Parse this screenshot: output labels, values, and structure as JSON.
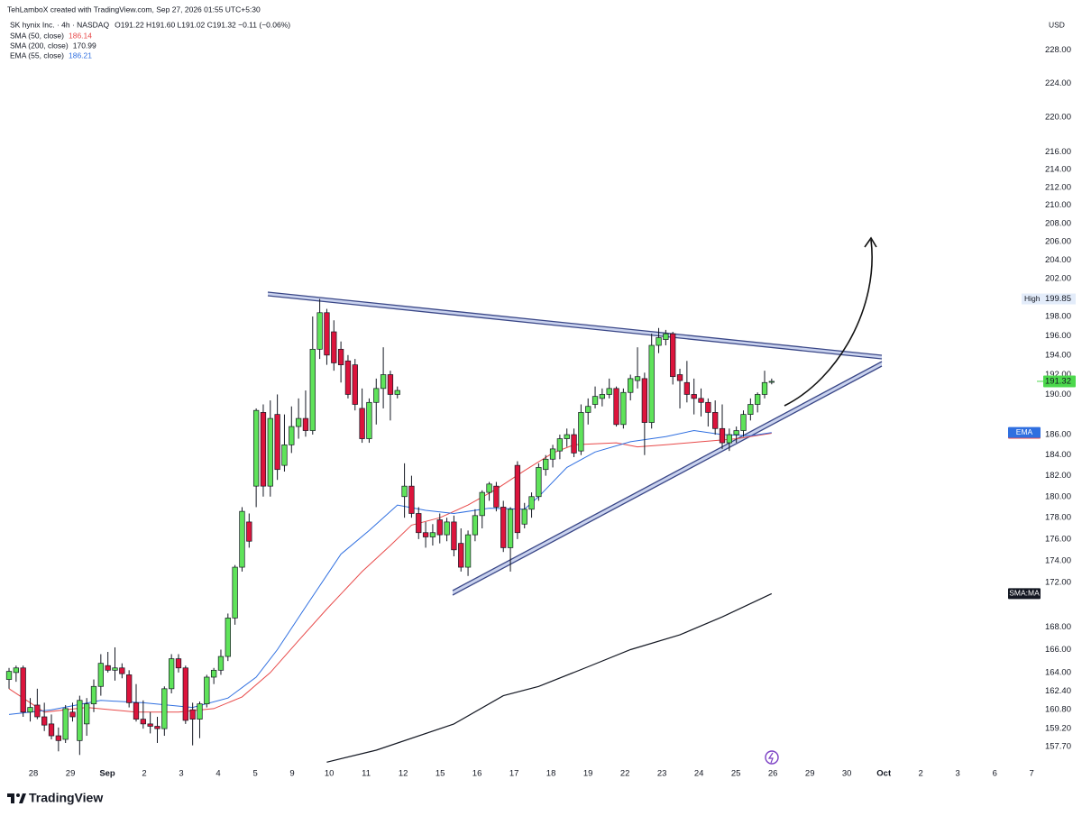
{
  "header": {
    "watermark": "TehLamboX created with TradingView.com, Sep 27, 2026 01:55 UTC+5:30",
    "symbol": "SK hynix Inc. · 4h · NASDAQ",
    "ohlc": "O191.22  H191.60  L191.02  C191.32  −0.11 (−0.06%)"
  },
  "footer": {
    "brand": "TradingView"
  },
  "chart_data": {
    "type": "candlestick",
    "currency": "USD",
    "log_scale": true,
    "up_color": "#5fe35a",
    "down_color": "#dc143c",
    "xlim": [
      -1.28,
      146.2
    ],
    "ylim": [
      156.2,
      234.1
    ],
    "xticks": [
      {
        "value": 3.45,
        "label": "28"
      },
      {
        "value": 8.69,
        "label": "29"
      },
      {
        "value": 13.92,
        "label": "Sep"
      },
      {
        "value": 19.16,
        "label": "2"
      },
      {
        "value": 24.39,
        "label": "3"
      },
      {
        "value": 29.63,
        "label": "4"
      },
      {
        "value": 34.87,
        "label": "5"
      },
      {
        "value": 40.1,
        "label": "9"
      },
      {
        "value": 45.34,
        "label": "10"
      },
      {
        "value": 50.57,
        "label": "11"
      },
      {
        "value": 55.81,
        "label": "12"
      },
      {
        "value": 61.05,
        "label": "15"
      },
      {
        "value": 66.28,
        "label": "16"
      },
      {
        "value": 71.52,
        "label": "17"
      },
      {
        "value": 76.75,
        "label": "18"
      },
      {
        "value": 81.99,
        "label": "19"
      },
      {
        "value": 87.23,
        "label": "22"
      },
      {
        "value": 92.46,
        "label": "23"
      },
      {
        "value": 97.7,
        "label": "24"
      },
      {
        "value": 102.93,
        "label": "25"
      },
      {
        "value": 108.17,
        "label": "26"
      },
      {
        "value": 113.41,
        "label": "29"
      },
      {
        "value": 118.64,
        "label": "30"
      },
      {
        "value": 123.88,
        "label": "Oct"
      },
      {
        "value": 129.11,
        "label": "2"
      },
      {
        "value": 134.35,
        "label": "3"
      },
      {
        "value": 139.59,
        "label": "6"
      },
      {
        "value": 144.82,
        "label": "7"
      }
    ],
    "yticks": [
      {
        "value": 157.7,
        "label": "157.70"
      },
      {
        "value": 159.2,
        "label": "159.20"
      },
      {
        "value": 160.8,
        "label": "160.80"
      },
      {
        "value": 162.4,
        "label": "162.40"
      },
      {
        "value": 164,
        "label": "164.00"
      },
      {
        "value": 166,
        "label": "166.00"
      },
      {
        "value": 168,
        "label": "168.00"
      },
      {
        "value": 172,
        "label": "172.00"
      },
      {
        "value": 174,
        "label": "174.00"
      },
      {
        "value": 176,
        "label": "176.00"
      },
      {
        "value": 178,
        "label": "178.00"
      },
      {
        "value": 180,
        "label": "180.00"
      },
      {
        "value": 182,
        "label": "182.00"
      },
      {
        "value": 184,
        "label": "184.00"
      },
      {
        "value": 186,
        "label": "186.00"
      },
      {
        "value": 190,
        "label": "190.00"
      },
      {
        "value": 192,
        "label": "192.00"
      },
      {
        "value": 194,
        "label": "194.00"
      },
      {
        "value": 196,
        "label": "196.00"
      },
      {
        "value": 198,
        "label": "198.00"
      },
      {
        "value": 202,
        "label": "202.00"
      },
      {
        "value": 204,
        "label": "204.00"
      },
      {
        "value": 206,
        "label": "206.00"
      },
      {
        "value": 208,
        "label": "208.00"
      },
      {
        "value": 210,
        "label": "210.00"
      },
      {
        "value": 212,
        "label": "212.00"
      },
      {
        "value": 214,
        "label": "214.00"
      },
      {
        "value": 216,
        "label": "216.00"
      },
      {
        "value": 220,
        "label": "220.00"
      },
      {
        "value": 224,
        "label": "224.00"
      },
      {
        "value": 228,
        "label": "228.00"
      }
    ],
    "candles": {
      "open": [
        163.4,
        164.0,
        164.4,
        160.6,
        161.2,
        160.2,
        159.6,
        158.6,
        158.3,
        160.6,
        158.2,
        159.6,
        161.3,
        162.8,
        164.6,
        164.2,
        164.4,
        163.8,
        161.4,
        160.0,
        159.6,
        159.4,
        159.2,
        162.6,
        165.2,
        164.4,
        160.8,
        160.0,
        161.3,
        163.6,
        164.2,
        165.4,
        168.8,
        173.4,
        177.6,
        181.0,
        188.2,
        181.0,
        188.0,
        183.0,
        185.0,
        186.8,
        187.6,
        186.4,
        194.6,
        198.4,
        196.4,
        194.6,
        193.4,
        193.0,
        188.6,
        185.6,
        189.2,
        190.6,
        192.0,
        190.0,
        180.0,
        181.0,
        178.4,
        176.6,
        176.2,
        177.8,
        176.4,
        177.6,
        175.6,
        173.4,
        176.4,
        178.2,
        180.4,
        181.0,
        179.0,
        175.2,
        183.0,
        177.4,
        178.8,
        180.0,
        182.6,
        183.6,
        184.4,
        185.6,
        186.0,
        184.4,
        188.2,
        189.0,
        189.6,
        190.0,
        190.6,
        187.0,
        190.2,
        191.4,
        191.6,
        187.2,
        195.0,
        195.6,
        196.2,
        192.0,
        191.2,
        190.0,
        189.6,
        189.2,
        188.2,
        186.6,
        185.2,
        186.0,
        186.4,
        188.0,
        189.0,
        190.0,
        191.22
      ],
      "high": [
        164.4,
        164.6,
        164.6,
        161.8,
        162.6,
        161.4,
        160.4,
        159.3,
        161.2,
        161.4,
        162.0,
        161.8,
        163.4,
        165.6,
        165.8,
        166.2,
        164.8,
        164.2,
        163.0,
        161.6,
        160.6,
        160.2,
        162.8,
        165.6,
        165.6,
        164.6,
        161.4,
        161.5,
        163.8,
        164.4,
        166.0,
        169.2,
        173.6,
        179.0,
        178.4,
        188.6,
        189.0,
        189.4,
        190.0,
        188.0,
        188.8,
        189.6,
        190.4,
        198.0,
        199.85,
        198.8,
        197.6,
        195.4,
        194.0,
        193.6,
        190.6,
        189.6,
        191.6,
        194.8,
        192.4,
        190.8,
        183.2,
        182.0,
        179.0,
        177.6,
        177.4,
        178.4,
        178.0,
        178.2,
        177.0,
        176.8,
        178.8,
        180.6,
        181.4,
        181.4,
        179.6,
        179.0,
        183.4,
        179.4,
        180.4,
        183.2,
        184.0,
        185.0,
        186.0,
        186.6,
        186.6,
        189.0,
        189.6,
        190.8,
        190.6,
        191.6,
        190.8,
        190.6,
        192.0,
        194.8,
        192.2,
        196.2,
        196.8,
        196.6,
        196.4,
        192.6,
        193.4,
        191.6,
        190.6,
        189.6,
        189.4,
        189.0,
        186.6,
        186.8,
        188.4,
        189.6,
        190.2,
        192.4,
        191.6
      ],
      "low": [
        162.6,
        163.2,
        160.2,
        159.8,
        160.0,
        159.0,
        158.3,
        157.3,
        158.0,
        159.8,
        157.0,
        158.6,
        160.6,
        162.0,
        164.0,
        163.3,
        163.5,
        161.0,
        159.8,
        159.2,
        158.8,
        158.0,
        158.6,
        162.2,
        164.0,
        159.6,
        157.8,
        158.4,
        161.0,
        163.0,
        163.8,
        165.0,
        168.2,
        173.0,
        175.2,
        179.0,
        180.0,
        180.0,
        181.6,
        182.4,
        184.2,
        185.6,
        185.8,
        186.0,
        193.6,
        193.0,
        192.4,
        191.2,
        189.6,
        188.4,
        185.2,
        185.2,
        187.0,
        188.6,
        187.4,
        189.6,
        178.0,
        178.0,
        176.0,
        175.2,
        175.4,
        175.6,
        175.8,
        174.4,
        173.0,
        172.6,
        175.8,
        177.0,
        179.6,
        178.6,
        174.8,
        173.0,
        176.0,
        177.0,
        178.0,
        179.6,
        182.0,
        182.8,
        183.6,
        184.8,
        183.8,
        184.0,
        187.0,
        188.6,
        188.8,
        189.6,
        186.8,
        186.6,
        189.4,
        190.6,
        184.0,
        186.6,
        194.2,
        195.0,
        191.0,
        188.6,
        189.2,
        188.0,
        187.8,
        186.8,
        186.0,
        184.6,
        184.4,
        185.2,
        185.8,
        187.4,
        188.2,
        189.6,
        191.02
      ],
      "close": [
        164.1,
        164.4,
        160.6,
        161.0,
        160.2,
        159.5,
        158.6,
        158.2,
        160.9,
        160.2,
        161.6,
        161.3,
        162.8,
        164.8,
        164.2,
        164.4,
        163.9,
        161.4,
        160.0,
        159.6,
        159.4,
        159.2,
        162.6,
        165.2,
        164.4,
        159.9,
        160.0,
        161.3,
        163.6,
        164.2,
        165.4,
        168.8,
        173.4,
        178.6,
        175.8,
        188.4,
        181.0,
        187.6,
        182.6,
        185.0,
        186.8,
        187.6,
        186.4,
        194.6,
        198.4,
        194.0,
        193.2,
        193.0,
        190.0,
        189.0,
        185.6,
        189.2,
        190.6,
        192.0,
        190.0,
        190.4,
        181.0,
        178.4,
        176.6,
        176.2,
        176.6,
        176.4,
        177.6,
        175.0,
        173.4,
        176.4,
        178.2,
        180.4,
        181.2,
        179.0,
        175.2,
        178.8,
        176.6,
        178.8,
        180.0,
        182.8,
        183.6,
        184.6,
        185.6,
        186.0,
        184.2,
        188.2,
        188.8,
        189.8,
        190.0,
        190.6,
        187.0,
        190.2,
        191.6,
        191.8,
        187.2,
        195.0,
        195.8,
        196.2,
        191.8,
        191.4,
        190.0,
        189.6,
        189.2,
        188.2,
        186.6,
        185.2,
        186.0,
        186.4,
        188.0,
        189.0,
        190.0,
        191.2,
        191.32
      ]
    },
    "series": [
      {
        "name": "SMA (50, close)",
        "last": 186.14,
        "badge": "SMA:MA",
        "color": "#e84a4a",
        "x": [
          0,
          5,
          11,
          18,
          24,
          29,
          33,
          37,
          41,
          45,
          50,
          54,
          57,
          61,
          65,
          69,
          73,
          77,
          80,
          86,
          89,
          93,
          98,
          103,
          108
        ],
        "values": [
          162.6,
          160.6,
          161.0,
          160.6,
          160.6,
          160.9,
          161.9,
          164.0,
          166.8,
          169.6,
          173.0,
          175.4,
          177.3,
          178.0,
          179.2,
          180.7,
          182.5,
          184.2,
          185.0,
          185.2,
          184.8,
          185.0,
          185.3,
          185.6,
          186.14
        ]
      },
      {
        "name": "SMA (200, close)",
        "last": 170.99,
        "badge": "SMA:MA",
        "color": "#131722",
        "x": [
          45,
          52,
          63,
          70,
          75,
          82,
          88,
          95,
          101,
          108
        ],
        "values": [
          156.4,
          157.4,
          159.6,
          162.0,
          162.8,
          164.5,
          166.0,
          167.3,
          168.9,
          170.99
        ]
      },
      {
        "name": "EMA (55, close)",
        "last": 186.21,
        "badge": "EMA",
        "color": "#2f6fe0",
        "x": [
          0,
          6,
          13,
          19,
          26,
          31,
          35,
          38,
          42,
          47,
          51,
          55,
          59,
          63,
          68,
          73,
          75,
          79,
          83,
          88,
          93,
          97,
          101,
          105,
          108
        ],
        "values": [
          160.4,
          160.8,
          161.6,
          161.4,
          161.0,
          161.8,
          163.6,
          166.0,
          169.8,
          174.6,
          176.8,
          179.2,
          178.7,
          178.4,
          178.9,
          178.8,
          180.0,
          182.8,
          184.3,
          185.3,
          185.8,
          186.4,
          186.0,
          185.9,
          186.21
        ]
      }
    ],
    "high_marker": {
      "label": "High",
      "value": 199.85
    },
    "last_price": 191.32,
    "last_color": "#4cd84c"
  }
}
